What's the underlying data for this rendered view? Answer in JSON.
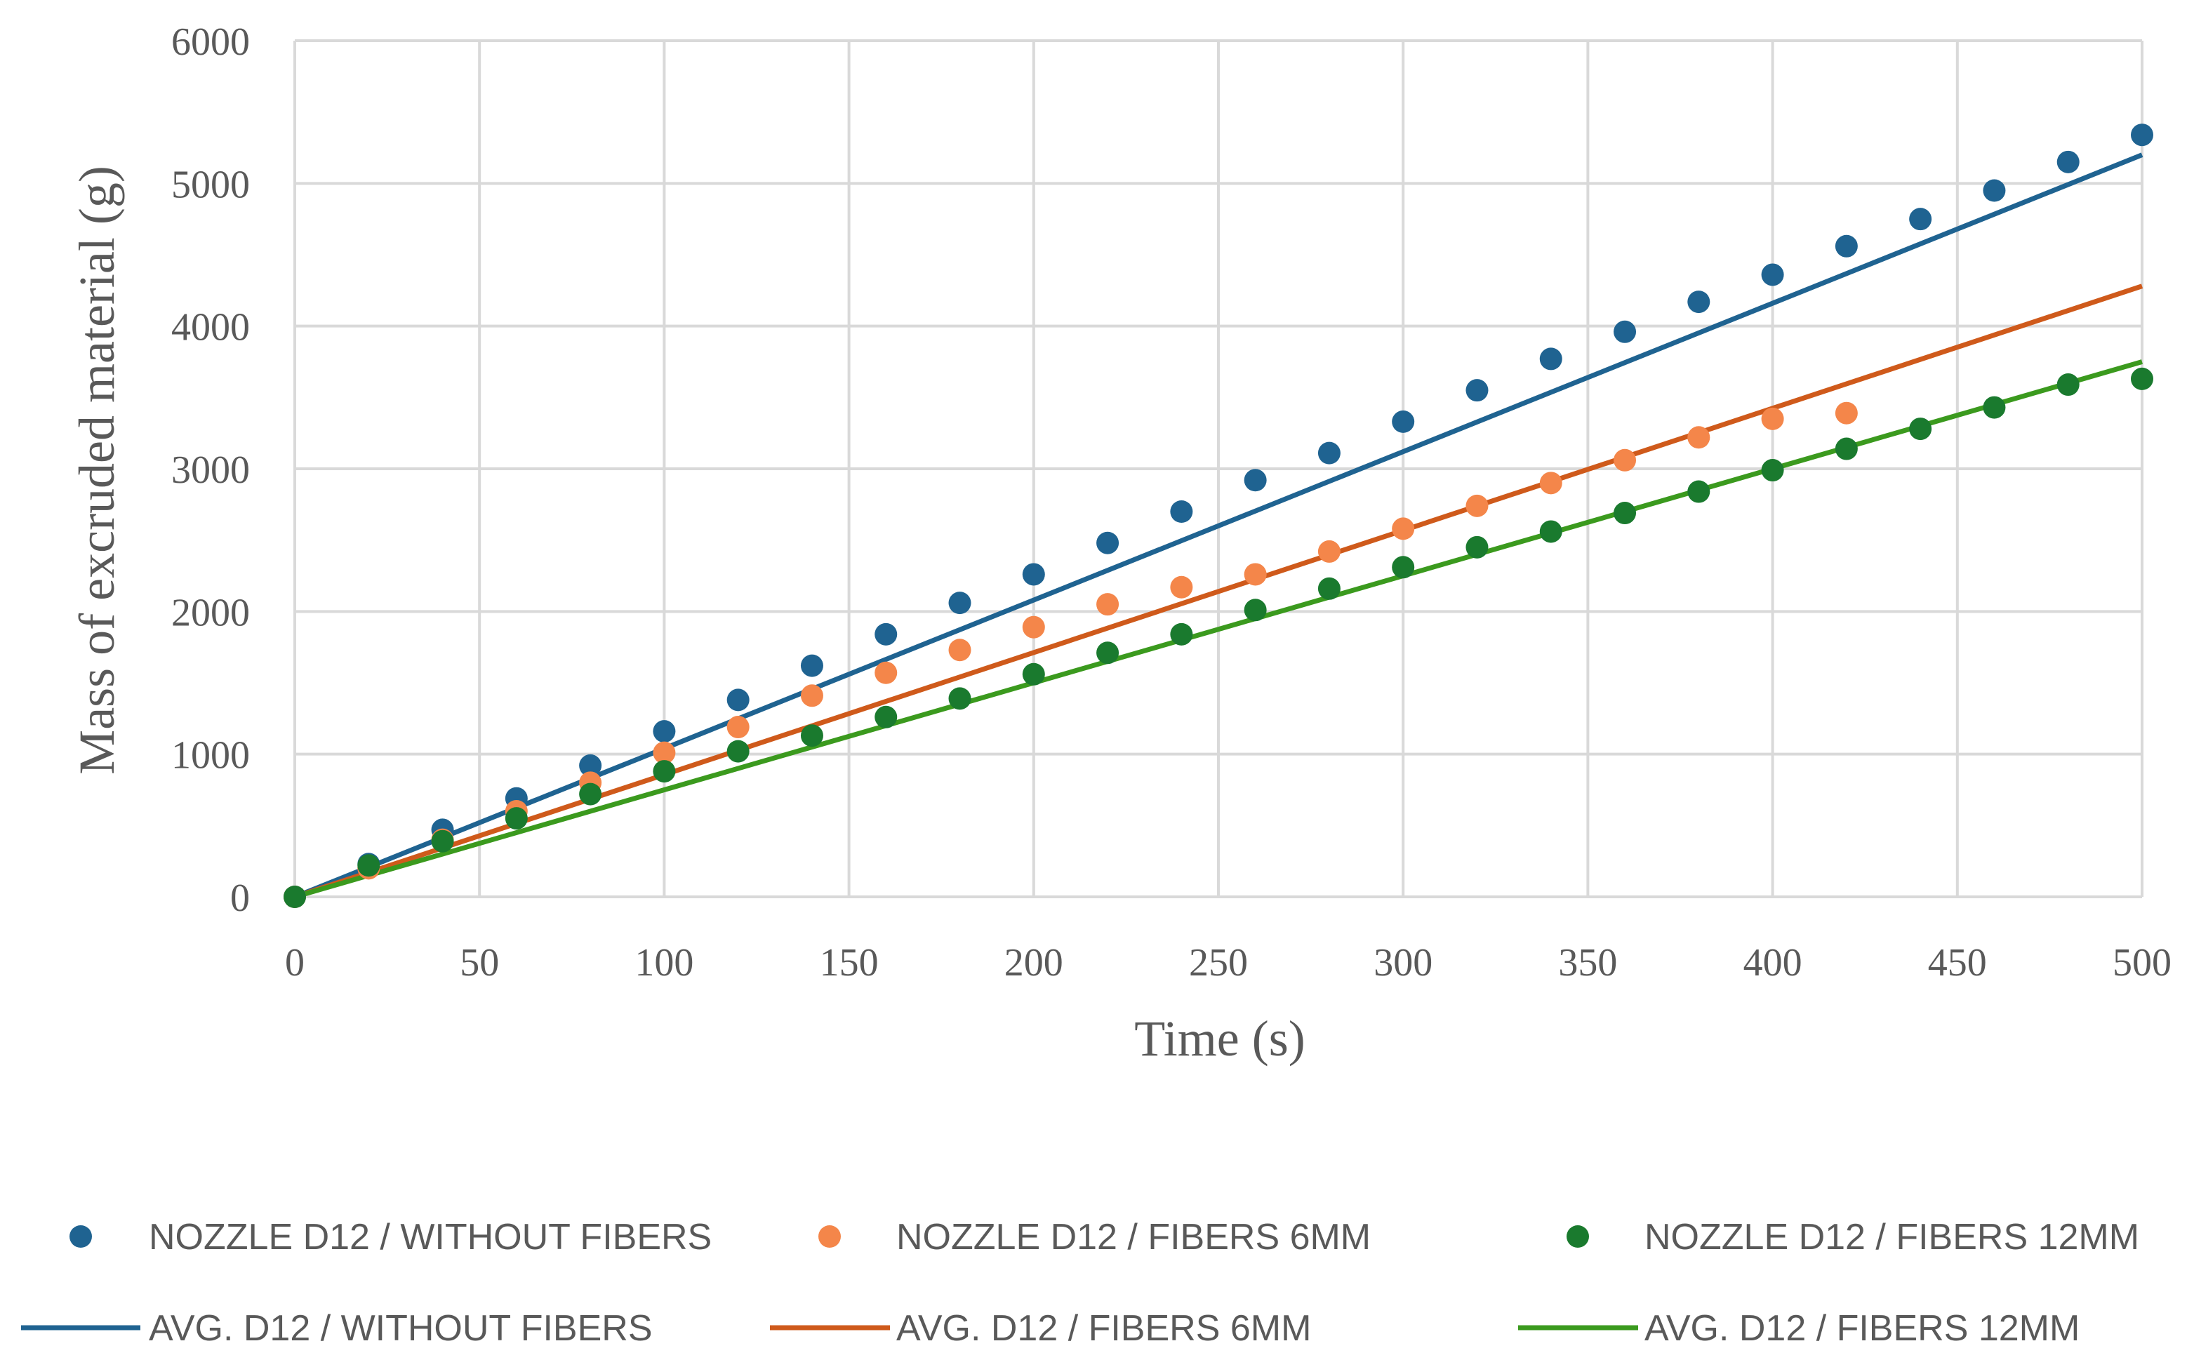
{
  "chart_data": {
    "type": "scatter",
    "title": "",
    "xlabel": "Time (s)",
    "ylabel": "Mass of excruded material (g)",
    "xlim": [
      0,
      500
    ],
    "ylim": [
      0,
      6000
    ],
    "xticks": [
      0,
      50,
      100,
      150,
      200,
      250,
      300,
      350,
      400,
      450,
      500
    ],
    "yticks": [
      0,
      1000,
      2000,
      3000,
      4000,
      5000,
      6000
    ],
    "grid": true,
    "legend_position": "bottom",
    "series": [
      {
        "name": "NOZZLE D12 / WITHOUT FIBERS",
        "kind": "scatter",
        "color": "#1f6391",
        "x": [
          0,
          20,
          40,
          60,
          80,
          100,
          120,
          140,
          160,
          180,
          200,
          220,
          240,
          260,
          280,
          300,
          320,
          340,
          360,
          380,
          400,
          420,
          440,
          460,
          480,
          500
        ],
        "y": [
          0,
          230,
          470,
          690,
          920,
          1160,
          1380,
          1620,
          1840,
          2060,
          2260,
          2480,
          2700,
          2920,
          3110,
          3330,
          3550,
          3770,
          3960,
          4170,
          4360,
          4560,
          4750,
          4950,
          5150,
          5340
        ]
      },
      {
        "name": "NOZZLE D12 / FIBERS 6MM",
        "kind": "scatter",
        "color": "#f4864a",
        "x": [
          0,
          20,
          40,
          60,
          80,
          100,
          120,
          140,
          160,
          180,
          200,
          220,
          240,
          260,
          280,
          300,
          320,
          340,
          360,
          380,
          400,
          420
        ],
        "y": [
          0,
          200,
          400,
          600,
          800,
          1010,
          1190,
          1410,
          1570,
          1730,
          1890,
          2050,
          2170,
          2260,
          2420,
          2580,
          2740,
          2900,
          3060,
          3220,
          3350,
          3390
        ]
      },
      {
        "name": "NOZZLE D12 / FIBERS 12MM",
        "kind": "scatter",
        "color": "#1a7a2e",
        "x": [
          0,
          20,
          40,
          60,
          80,
          100,
          120,
          140,
          160,
          180,
          200,
          220,
          240,
          260,
          280,
          300,
          320,
          340,
          360,
          380,
          400,
          420,
          440,
          460,
          480,
          500
        ],
        "y": [
          0,
          220,
          390,
          550,
          720,
          880,
          1020,
          1130,
          1260,
          1390,
          1560,
          1710,
          1840,
          2010,
          2160,
          2310,
          2450,
          2560,
          2690,
          2840,
          2990,
          3140,
          3280,
          3430,
          3590,
          3630
        ]
      },
      {
        "name": "AVG. D12 / WITHOUT FIBERS",
        "kind": "line",
        "color": "#1f6391",
        "x": [
          0,
          500
        ],
        "y": [
          0,
          5200
        ]
      },
      {
        "name": "AVG. D12 / FIBERS 6MM",
        "kind": "line",
        "color": "#cf5a1b",
        "x": [
          0,
          500
        ],
        "y": [
          0,
          4280
        ]
      },
      {
        "name": "AVG. D12 / FIBERS 12MM",
        "kind": "line",
        "color": "#3b9a1e",
        "x": [
          0,
          500
        ],
        "y": [
          0,
          3750
        ]
      }
    ]
  }
}
